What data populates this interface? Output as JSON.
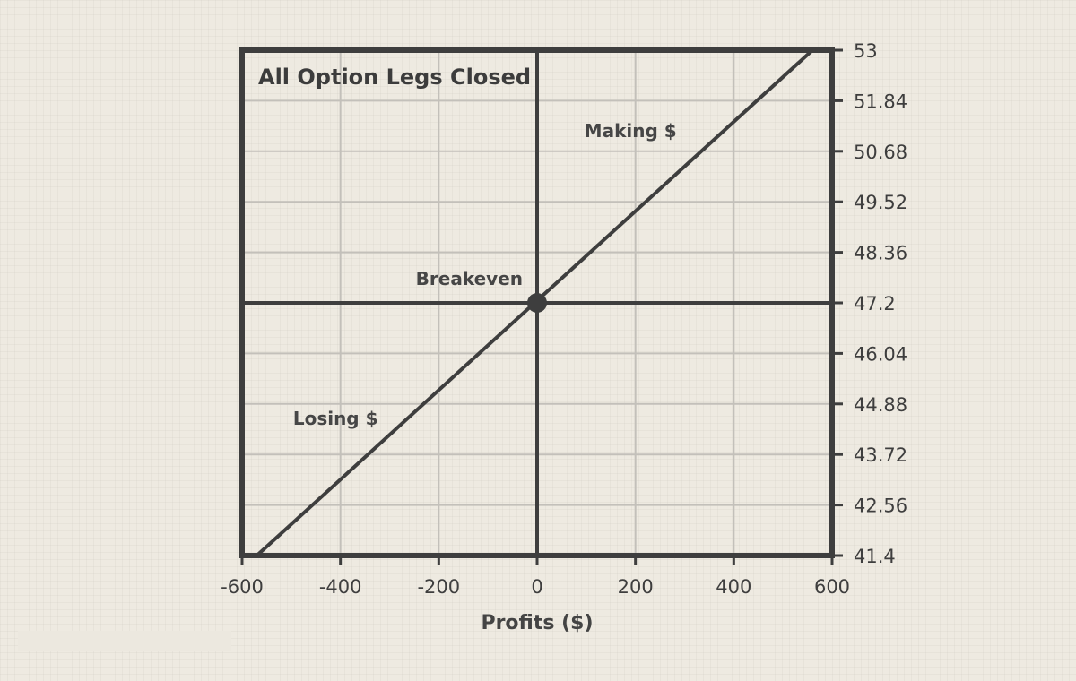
{
  "chart_data": {
    "type": "line",
    "title": "All Option Legs Closed",
    "xlabel": "Profits ($)",
    "ylabel": "",
    "xlim": [
      -600,
      600
    ],
    "ylim": [
      41.4,
      53
    ],
    "x_ticks": [
      -600,
      -400,
      -200,
      0,
      200,
      400,
      600
    ],
    "x_tick_labels": [
      "-600",
      "-400",
      "-200",
      "0",
      "200",
      "400",
      "600"
    ],
    "y_ticks": [
      41.4,
      42.56,
      43.72,
      44.88,
      46.04,
      47.2,
      48.36,
      49.52,
      50.68,
      51.84,
      53
    ],
    "y_tick_labels": [
      "41.4",
      "42.56",
      "43.72",
      "44.88",
      "46.04",
      "47.2",
      "48.36",
      "49.52",
      "50.68",
      "51.84",
      "53"
    ],
    "y_axis_side": "right",
    "grid": true,
    "series": [
      {
        "x": [
          -570,
          560
        ],
        "y": [
          41.4,
          53
        ],
        "color": "#3e3e3e"
      }
    ],
    "reference_lines": {
      "horizontal_y": 47.2,
      "vertical_x": 0
    },
    "breakeven_point": {
      "x": 0,
      "y": 47.2,
      "label": "Breakeven"
    },
    "annotations": [
      {
        "text": "Making $",
        "x": 190,
        "y": 51.0
      },
      {
        "text": "Losing $",
        "x": -410,
        "y": 44.4
      }
    ]
  },
  "colors": {
    "frame": "#3e3e3e",
    "grid": "#c3c0ba",
    "background": "#eeeae1",
    "text": "#3e3e3e"
  }
}
